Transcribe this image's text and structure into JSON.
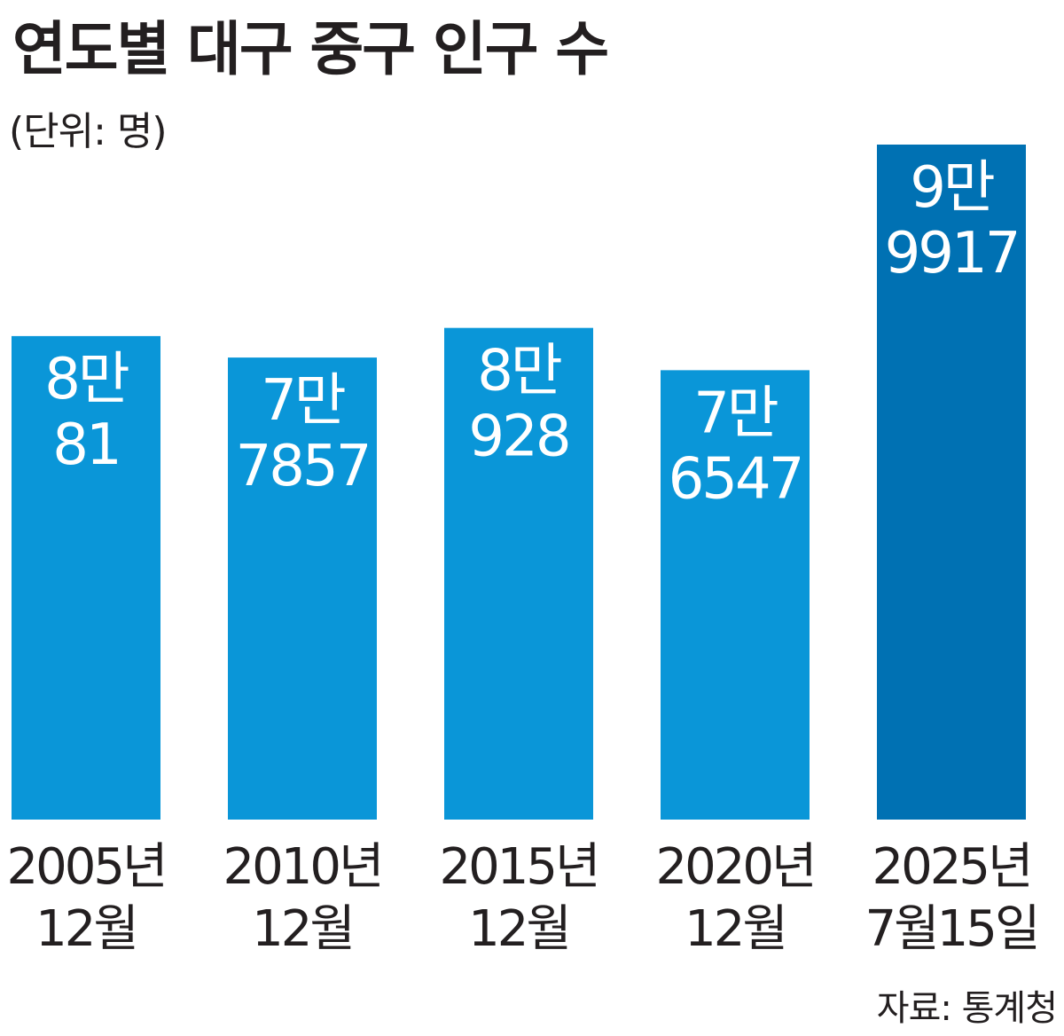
{
  "header": {
    "title": "연도별 대구 중구 인구 수",
    "unit_note": "(단위: 명)"
  },
  "footer": {
    "source": "자료: 통계청"
  },
  "colors": {
    "bar": "#0a96d8",
    "bar_highlight": "#0071b3",
    "bar_label": "#ffffff",
    "text": "#231f20"
  },
  "chart_data": {
    "type": "bar",
    "title": "연도별 대구 중구 인구 수",
    "subtitle": "(단위: 명)",
    "categories": [
      [
        "2005년",
        "12월"
      ],
      [
        "2010년",
        "12월"
      ],
      [
        "2015년",
        "12월"
      ],
      [
        "2020년",
        "12월"
      ],
      [
        "2025년",
        "7월15일"
      ]
    ],
    "values": [
      80081,
      77857,
      80928,
      76547,
      99917
    ],
    "data_labels": [
      [
        "8만",
        "81"
      ],
      [
        "7만",
        "7857"
      ],
      [
        "8만",
        "928"
      ],
      [
        "7만",
        "6547"
      ],
      [
        "9만",
        "9917"
      ]
    ],
    "highlight_index": 4,
    "grid": false,
    "legend": false
  }
}
